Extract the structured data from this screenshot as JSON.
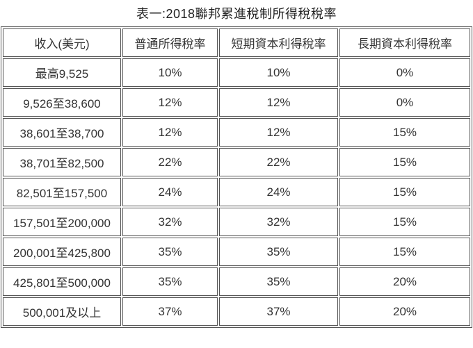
{
  "title": "表一:2018聯邦累進稅制所得稅稅率",
  "chart_data": {
    "type": "table",
    "title": "表一:2018聯邦累進稅制所得稅稅率",
    "columns": [
      "收入(美元)",
      "普通所得稅率",
      "短期資本利得稅率",
      "長期資本利得稅率"
    ],
    "rows": [
      [
        "最高9,525",
        "10%",
        "10%",
        "0%"
      ],
      [
        "9,526至38,600",
        "12%",
        "12%",
        "0%"
      ],
      [
        "38,601至38,700",
        "12%",
        "12%",
        "15%"
      ],
      [
        "38,701至82,500",
        "22%",
        "22%",
        "15%"
      ],
      [
        "82,501至157,500",
        "24%",
        "24%",
        "15%"
      ],
      [
        "157,501至200,000",
        "32%",
        "32%",
        "15%"
      ],
      [
        "200,001至425,800",
        "35%",
        "35%",
        "15%"
      ],
      [
        "425,801至500,000",
        "35%",
        "35%",
        "20%"
      ],
      [
        "500,001及以上",
        "37%",
        "37%",
        "20%"
      ]
    ]
  },
  "colors": {
    "border": "#555555",
    "text": "#333333",
    "background": "#ffffff"
  }
}
